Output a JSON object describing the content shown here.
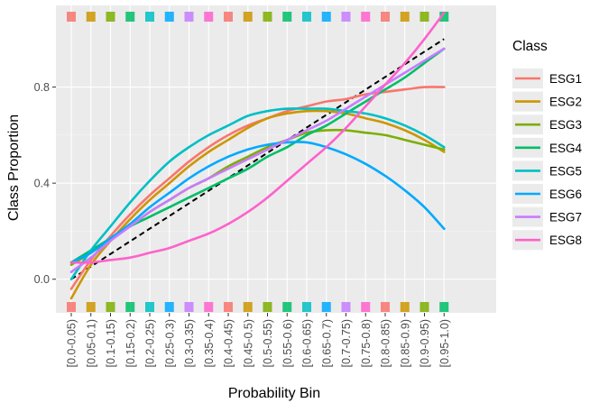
{
  "chart_data": {
    "type": "line",
    "xlabel": "Probability Bin",
    "ylabel": "Class Proportion",
    "categories": [
      "[0.0-0.05)",
      "[0.05-0.1)",
      "[0.1-0.15)",
      "[0.15-0.2)",
      "[0.2-0.25)",
      "[0.25-0.3)",
      "[0.3-0.35)",
      "[0.35-0.4)",
      "[0.4-0.45)",
      "[0.45-0.5)",
      "[0.5-0.55)",
      "[0.55-0.6)",
      "[0.6-0.65)",
      "[0.65-0.7)",
      "[0.7-0.75)",
      "[0.75-0.8)",
      "[0.8-0.85)",
      "[0.85-0.9)",
      "[0.9-0.95)",
      "[0.95-1.0)"
    ],
    "ylim": [
      -0.14,
      1.14
    ],
    "yticks": [
      0.0,
      0.4,
      0.8
    ],
    "ytick_labels": [
      "0.0",
      "0.4",
      "0.8"
    ],
    "grid": true,
    "legend": {
      "title": "Class",
      "position": "right"
    },
    "reference_line": {
      "style": "dashed",
      "color": "#000000",
      "from": [
        0.0,
        0.0
      ],
      "to": [
        1.0,
        1.0
      ]
    },
    "series": [
      {
        "name": "ESG1",
        "color": "#F8766D",
        "values": [
          -0.04,
          0.08,
          0.18,
          0.27,
          0.35,
          0.42,
          0.49,
          0.55,
          0.6,
          0.64,
          0.67,
          0.7,
          0.72,
          0.74,
          0.75,
          0.77,
          0.78,
          0.79,
          0.8,
          0.8
        ]
      },
      {
        "name": "ESG2",
        "color": "#CD9600",
        "values": [
          -0.08,
          0.06,
          0.16,
          0.25,
          0.33,
          0.4,
          0.47,
          0.53,
          0.58,
          0.63,
          0.67,
          0.69,
          0.7,
          0.7,
          0.69,
          0.67,
          0.65,
          0.62,
          0.58,
          0.53
        ]
      },
      {
        "name": "ESG3",
        "color": "#7CAE00",
        "values": [
          0.06,
          0.11,
          0.17,
          0.22,
          0.28,
          0.33,
          0.38,
          0.42,
          0.47,
          0.51,
          0.55,
          0.58,
          0.61,
          0.62,
          0.62,
          0.61,
          0.6,
          0.58,
          0.56,
          0.54
        ]
      },
      {
        "name": "ESG4",
        "color": "#00BE67",
        "values": [
          0.07,
          0.12,
          0.17,
          0.22,
          0.26,
          0.3,
          0.34,
          0.38,
          0.42,
          0.46,
          0.51,
          0.55,
          0.6,
          0.64,
          0.69,
          0.74,
          0.79,
          0.84,
          0.9,
          0.96
        ]
      },
      {
        "name": "ESG5",
        "color": "#00BFC4",
        "values": [
          0.0,
          0.12,
          0.22,
          0.32,
          0.41,
          0.49,
          0.55,
          0.6,
          0.64,
          0.68,
          0.7,
          0.71,
          0.71,
          0.71,
          0.7,
          0.69,
          0.67,
          0.64,
          0.6,
          0.55
        ]
      },
      {
        "name": "ESG6",
        "color": "#00A9FF",
        "values": [
          0.07,
          0.11,
          0.17,
          0.23,
          0.3,
          0.36,
          0.42,
          0.47,
          0.51,
          0.54,
          0.56,
          0.57,
          0.57,
          0.55,
          0.52,
          0.48,
          0.43,
          0.37,
          0.3,
          0.21
        ]
      },
      {
        "name": "ESG7",
        "color": "#C77CFF",
        "values": [
          0.03,
          0.09,
          0.16,
          0.22,
          0.28,
          0.33,
          0.38,
          0.42,
          0.46,
          0.5,
          0.54,
          0.58,
          0.62,
          0.66,
          0.71,
          0.76,
          0.81,
          0.86,
          0.91,
          0.96
        ]
      },
      {
        "name": "ESG8",
        "color": "#FF61CC",
        "values": [
          0.07,
          0.07,
          0.08,
          0.09,
          0.11,
          0.13,
          0.16,
          0.19,
          0.23,
          0.28,
          0.34,
          0.41,
          0.48,
          0.55,
          0.63,
          0.72,
          0.81,
          0.9,
          1.0,
          1.11
        ]
      }
    ]
  }
}
